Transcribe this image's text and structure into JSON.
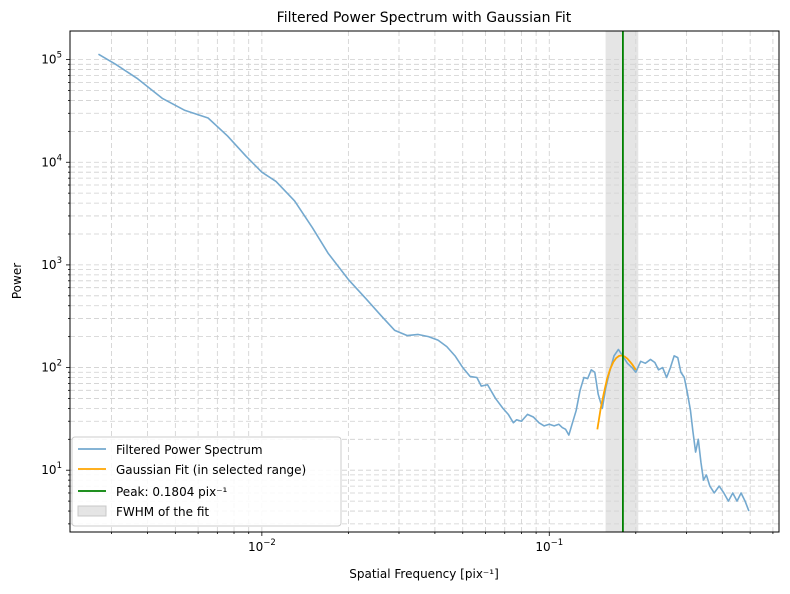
{
  "chart_data": {
    "type": "line",
    "title": "Filtered Power Spectrum with Gaussian Fit",
    "xlabel": "Spatial Frequency [pix⁻¹]",
    "ylabel": "Power",
    "xscale": "log",
    "yscale": "log",
    "xlim": [
      0.00215,
      0.63
    ],
    "ylim": [
      2.5,
      190000
    ],
    "grid": true,
    "legend_position": "lower-left",
    "x_ticks": [
      {
        "value": 0.01,
        "base": "10",
        "exp": "−2"
      },
      {
        "value": 0.1,
        "base": "10",
        "exp": "−1"
      }
    ],
    "y_ticks": [
      {
        "value": 10,
        "base": "10",
        "exp": "1"
      },
      {
        "value": 100,
        "base": "10",
        "exp": "2"
      },
      {
        "value": 1000,
        "base": "10",
        "exp": "3"
      },
      {
        "value": 10000,
        "base": "10",
        "exp": "4"
      },
      {
        "value": 100000,
        "base": "10",
        "exp": "5"
      }
    ],
    "fwhm_range": [
      0.157,
      0.204
    ],
    "peak": 0.1804,
    "series": [
      {
        "name": "Filtered Power Spectrum",
        "color": "#74a9cf",
        "points": [
          [
            0.0027,
            113000
          ],
          [
            0.0031,
            90000
          ],
          [
            0.0037,
            65000
          ],
          [
            0.0045,
            42000
          ],
          [
            0.0054,
            32000
          ],
          [
            0.0065,
            27000
          ],
          [
            0.0076,
            18000
          ],
          [
            0.0088,
            11500
          ],
          [
            0.01,
            8000
          ],
          [
            0.0112,
            6500
          ],
          [
            0.013,
            4200
          ],
          [
            0.015,
            2300
          ],
          [
            0.017,
            1300
          ],
          [
            0.02,
            720
          ],
          [
            0.023,
            470
          ],
          [
            0.026,
            320
          ],
          [
            0.029,
            230
          ],
          [
            0.032,
            205
          ],
          [
            0.035,
            210
          ],
          [
            0.038,
            200
          ],
          [
            0.041,
            185
          ],
          [
            0.044,
            160
          ],
          [
            0.047,
            130
          ],
          [
            0.05,
            100
          ],
          [
            0.053,
            82
          ],
          [
            0.056,
            80
          ],
          [
            0.058,
            66
          ],
          [
            0.061,
            68
          ],
          [
            0.065,
            50
          ],
          [
            0.069,
            40
          ],
          [
            0.072,
            35
          ],
          [
            0.075,
            29
          ],
          [
            0.077,
            31
          ],
          [
            0.08,
            30
          ],
          [
            0.084,
            35
          ],
          [
            0.088,
            33
          ],
          [
            0.092,
            29
          ],
          [
            0.096,
            27
          ],
          [
            0.1,
            28
          ],
          [
            0.104,
            27
          ],
          [
            0.108,
            28
          ],
          [
            0.111,
            26
          ],
          [
            0.114,
            25
          ],
          [
            0.117,
            22
          ],
          [
            0.12,
            28
          ],
          [
            0.124,
            38
          ],
          [
            0.128,
            60
          ],
          [
            0.132,
            80
          ],
          [
            0.136,
            78
          ],
          [
            0.14,
            95
          ],
          [
            0.144,
            90
          ],
          [
            0.148,
            55
          ],
          [
            0.153,
            40
          ],
          [
            0.157,
            62
          ],
          [
            0.162,
            90
          ],
          [
            0.168,
            130
          ],
          [
            0.174,
            150
          ],
          [
            0.18,
            130
          ],
          [
            0.187,
            110
          ],
          [
            0.194,
            100
          ],
          [
            0.2,
            90
          ],
          [
            0.208,
            115
          ],
          [
            0.216,
            110
          ],
          [
            0.225,
            120
          ],
          [
            0.233,
            112
          ],
          [
            0.24,
            95
          ],
          [
            0.248,
            100
          ],
          [
            0.256,
            80
          ],
          [
            0.264,
            100
          ],
          [
            0.272,
            130
          ],
          [
            0.28,
            125
          ],
          [
            0.287,
            90
          ],
          [
            0.295,
            80
          ],
          [
            0.303,
            55
          ],
          [
            0.31,
            38
          ],
          [
            0.316,
            24
          ],
          [
            0.323,
            15
          ],
          [
            0.33,
            20
          ],
          [
            0.337,
            12
          ],
          [
            0.344,
            8
          ],
          [
            0.352,
            9
          ],
          [
            0.362,
            7
          ],
          [
            0.375,
            6
          ],
          [
            0.39,
            7
          ],
          [
            0.405,
            6
          ],
          [
            0.42,
            5
          ],
          [
            0.435,
            6
          ],
          [
            0.45,
            5
          ],
          [
            0.465,
            6
          ],
          [
            0.48,
            5
          ],
          [
            0.495,
            4
          ]
        ]
      },
      {
        "name": "Gaussian Fit (in selected range)",
        "color": "#ffa500",
        "points": [
          [
            0.147,
            25
          ],
          [
            0.151,
            40
          ],
          [
            0.155,
            57
          ],
          [
            0.159,
            78
          ],
          [
            0.163,
            97
          ],
          [
            0.167,
            113
          ],
          [
            0.171,
            124
          ],
          [
            0.175,
            130
          ],
          [
            0.179,
            131
          ],
          [
            0.183,
            128
          ],
          [
            0.187,
            122
          ],
          [
            0.191,
            114
          ],
          [
            0.195,
            106
          ],
          [
            0.2,
            95
          ]
        ]
      },
      {
        "name": "Peak: 0.1804 pix⁻¹",
        "color": "#008000"
      },
      {
        "name": "FWHM of the fit",
        "color": "#d3d3d3"
      }
    ]
  }
}
